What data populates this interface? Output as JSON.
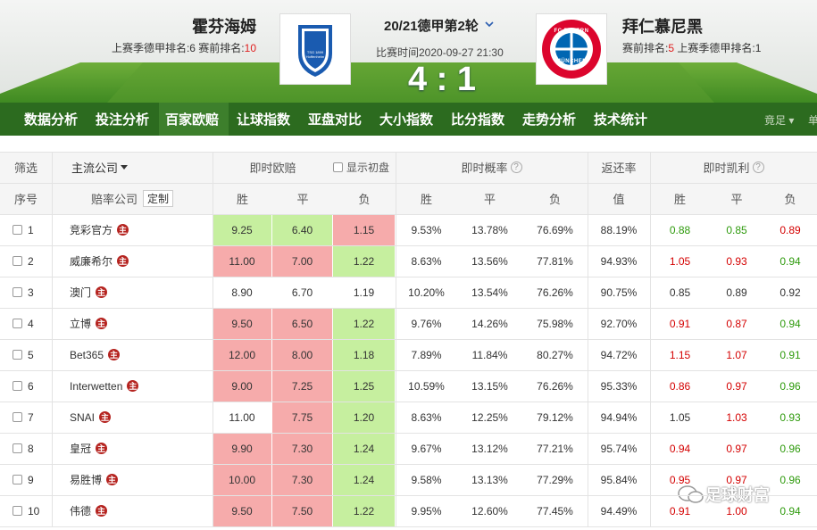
{
  "header": {
    "home": {
      "name": "霍芬海姆",
      "last_season": "上赛季德甲排名:6",
      "pre_rank_label": "赛前排名:",
      "pre_rank": "10",
      "logo_text": "TSG 1899 Hoffenheim"
    },
    "away": {
      "name": "拜仁慕尼黑",
      "pre_rank_label": "赛前排名:",
      "pre_rank": "5",
      "last_season": "上赛季德甲排名:1",
      "logo_text": "FC BAYERN MÜNCHEN"
    },
    "match": "20/21德甲第2轮",
    "time": "比赛时间2020-09-27 21:30",
    "score": "4 : 1"
  },
  "nav": {
    "items": [
      "数据分析",
      "投注分析",
      "百家欧赔",
      "让球指数",
      "亚盘对比",
      "大小指数",
      "比分指数",
      "走势分析",
      "技术统计"
    ],
    "active": 2,
    "extra": "竟足",
    "cut": "单"
  },
  "table": {
    "filter": "筛选",
    "main_companies": "主流公司",
    "live_odds": "即时欧赔",
    "show_initial": "显示初盘",
    "live_prob": "即时概率",
    "return_rate": "返还率",
    "live_kelly": "即时凯利",
    "help_icon": "?",
    "columns": {
      "no": "序号",
      "company": "赔率公司",
      "customize": "定制",
      "odds": [
        "胜",
        "平",
        "负"
      ],
      "prob": [
        "胜",
        "平",
        "负"
      ],
      "return": "值",
      "kelly": [
        "胜",
        "平",
        "负"
      ]
    },
    "palette": {
      "green": "#c6ef9f",
      "pink": "#f6abab",
      "kgreen": "#2e9a0c",
      "kred": "#d40000",
      "black": "#333333"
    },
    "rows": [
      {
        "no": "1",
        "company": "竞彩官方",
        "badge": "主",
        "odds": [
          "9.25",
          "6.40",
          "1.15"
        ],
        "odds_bg": [
          "green",
          "green",
          "pink"
        ],
        "prob": [
          "9.53%",
          "13.78%",
          "76.69%"
        ],
        "return": "88.19%",
        "kelly": [
          "0.88",
          "0.85",
          "0.89"
        ],
        "kelly_color": [
          "kgreen",
          "kgreen",
          "kred"
        ]
      },
      {
        "no": "2",
        "company": "威廉希尔",
        "badge": "主",
        "odds": [
          "11.00",
          "7.00",
          "1.22"
        ],
        "odds_bg": [
          "pink",
          "pink",
          "green"
        ],
        "prob": [
          "8.63%",
          "13.56%",
          "77.81%"
        ],
        "return": "94.93%",
        "kelly": [
          "1.05",
          "0.93",
          "0.94"
        ],
        "kelly_color": [
          "kred",
          "kred",
          "kgreen"
        ]
      },
      {
        "no": "3",
        "company": "澳门",
        "badge": "主",
        "odds": [
          "8.90",
          "6.70",
          "1.19"
        ],
        "odds_bg": [
          null,
          null,
          null
        ],
        "prob": [
          "10.20%",
          "13.54%",
          "76.26%"
        ],
        "return": "90.75%",
        "kelly": [
          "0.85",
          "0.89",
          "0.92"
        ],
        "kelly_color": [
          "black",
          "black",
          "black"
        ]
      },
      {
        "no": "4",
        "company": "立博",
        "badge": "主",
        "odds": [
          "9.50",
          "6.50",
          "1.22"
        ],
        "odds_bg": [
          "pink",
          "pink",
          "green"
        ],
        "prob": [
          "9.76%",
          "14.26%",
          "75.98%"
        ],
        "return": "92.70%",
        "kelly": [
          "0.91",
          "0.87",
          "0.94"
        ],
        "kelly_color": [
          "kred",
          "kred",
          "kgreen"
        ]
      },
      {
        "no": "5",
        "company": "Bet365",
        "badge": "主",
        "odds": [
          "12.00",
          "8.00",
          "1.18"
        ],
        "odds_bg": [
          "pink",
          "pink",
          "green"
        ],
        "prob": [
          "7.89%",
          "11.84%",
          "80.27%"
        ],
        "return": "94.72%",
        "kelly": [
          "1.15",
          "1.07",
          "0.91"
        ],
        "kelly_color": [
          "kred",
          "kred",
          "kgreen"
        ]
      },
      {
        "no": "6",
        "company": "Interwetten",
        "badge": "主",
        "odds": [
          "9.00",
          "7.25",
          "1.25"
        ],
        "odds_bg": [
          "pink",
          "pink",
          "green"
        ],
        "prob": [
          "10.59%",
          "13.15%",
          "76.26%"
        ],
        "return": "95.33%",
        "kelly": [
          "0.86",
          "0.97",
          "0.96"
        ],
        "kelly_color": [
          "kred",
          "kred",
          "kgreen"
        ]
      },
      {
        "no": "7",
        "company": "SNAI",
        "badge": "主",
        "odds": [
          "11.00",
          "7.75",
          "1.20"
        ],
        "odds_bg": [
          null,
          "pink",
          "green"
        ],
        "prob": [
          "8.63%",
          "12.25%",
          "79.12%"
        ],
        "return": "94.94%",
        "kelly": [
          "1.05",
          "1.03",
          "0.93"
        ],
        "kelly_color": [
          "black",
          "kred",
          "kgreen"
        ]
      },
      {
        "no": "8",
        "company": "皇冠",
        "badge": "主",
        "odds": [
          "9.90",
          "7.30",
          "1.24"
        ],
        "odds_bg": [
          "pink",
          "pink",
          "green"
        ],
        "prob": [
          "9.67%",
          "13.12%",
          "77.21%"
        ],
        "return": "95.74%",
        "kelly": [
          "0.94",
          "0.97",
          "0.96"
        ],
        "kelly_color": [
          "kred",
          "kred",
          "kgreen"
        ]
      },
      {
        "no": "9",
        "company": "易胜博",
        "badge": "主",
        "odds": [
          "10.00",
          "7.30",
          "1.24"
        ],
        "odds_bg": [
          "pink",
          "pink",
          "green"
        ],
        "prob": [
          "9.58%",
          "13.13%",
          "77.29%"
        ],
        "return": "95.84%",
        "kelly": [
          "0.95",
          "0.97",
          "0.96"
        ],
        "kelly_color": [
          "kred",
          "kred",
          "kgreen"
        ]
      },
      {
        "no": "10",
        "company": "伟德",
        "badge": "主",
        "odds": [
          "9.50",
          "7.50",
          "1.22"
        ],
        "odds_bg": [
          "pink",
          "pink",
          "green"
        ],
        "prob": [
          "9.95%",
          "12.60%",
          "77.45%"
        ],
        "return": "94.49%",
        "kelly": [
          "0.91",
          "1.00",
          "0.94"
        ],
        "kelly_color": [
          "kred",
          "kred",
          "kgreen"
        ]
      }
    ]
  },
  "watermark": "足球财富"
}
